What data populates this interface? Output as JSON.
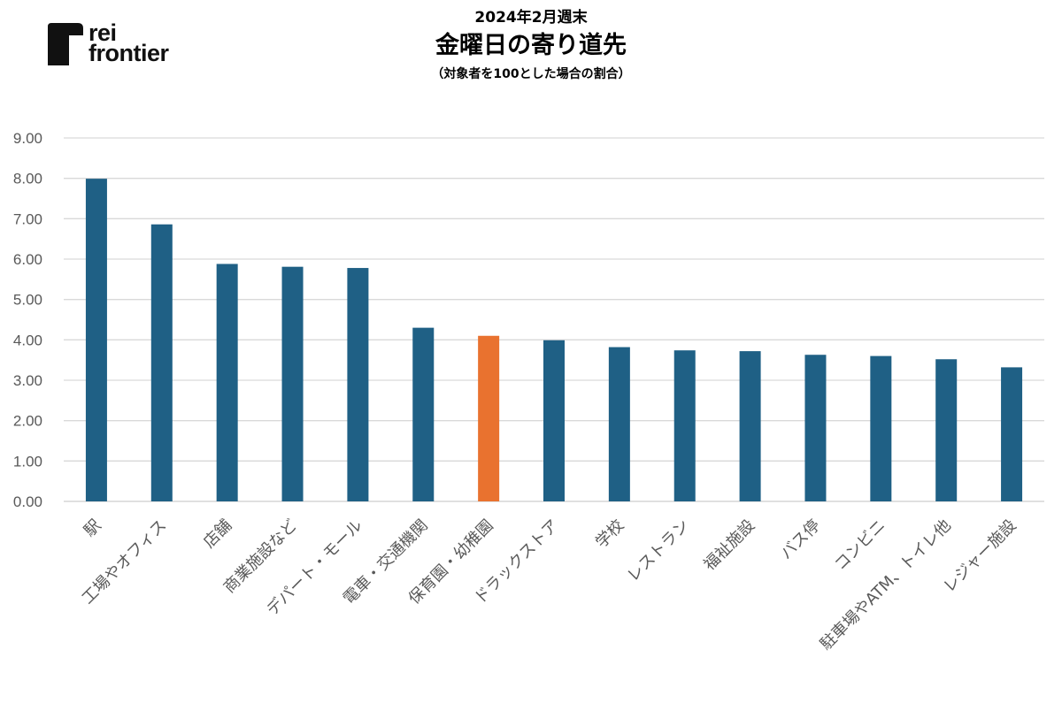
{
  "brand": {
    "name_line1": "rei",
    "name_line2": "frontier",
    "logo_icon": "rei-frontier-logo-icon"
  },
  "header": {
    "subtitle": "2024年2月週末",
    "title": "金曜日の寄り道先",
    "note": "（対象者を100とした場合の割合）"
  },
  "colors": {
    "bar": "#1f6085",
    "highlight": "#e9722f",
    "grid": "#d9d9d9",
    "tick_text": "#595959"
  },
  "chart_data": {
    "type": "bar",
    "title": "金曜日の寄り道先",
    "xlabel": "",
    "ylabel": "",
    "ylim": [
      0,
      9
    ],
    "yticks": [
      "0.00",
      "1.00",
      "2.00",
      "3.00",
      "4.00",
      "5.00",
      "6.00",
      "7.00",
      "8.00",
      "9.00"
    ],
    "grid": true,
    "legend": "none",
    "categories": [
      "駅",
      "工場やオフィス",
      "店舗",
      "商業施設など",
      "デパート・モール",
      "電車・交通機関",
      "保育園・幼稚園",
      "ドラックストア",
      "学校",
      "レストラン",
      "福祉施設",
      "バス停",
      "コンビニ",
      "駐車場やATM、トイレ他",
      "レジャー施設"
    ],
    "values": [
      7.99,
      6.86,
      5.88,
      5.81,
      5.78,
      4.3,
      4.1,
      3.99,
      3.82,
      3.74,
      3.72,
      3.63,
      3.6,
      3.52,
      3.32
    ],
    "highlight_index": 6
  }
}
